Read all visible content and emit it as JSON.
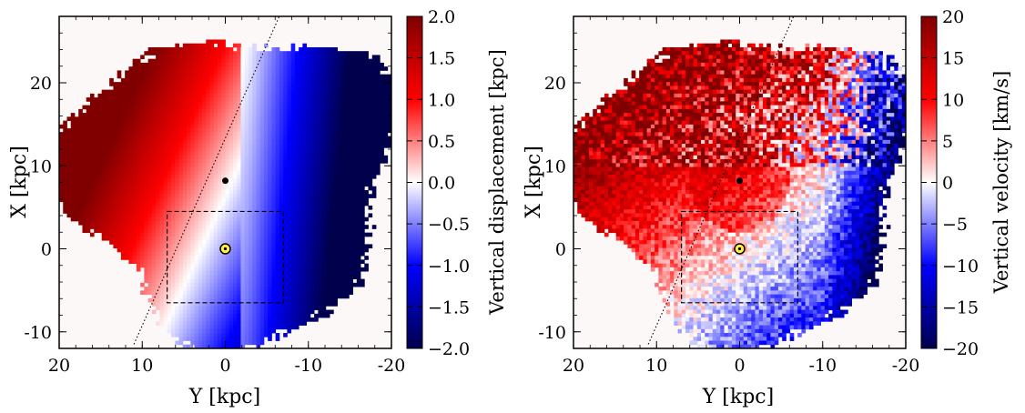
{
  "figure": {
    "panels": [
      {
        "id": "displacement",
        "colorbar_label": "Vertical displacement [kpc]",
        "colorbar_ticks": [
          "2.0",
          "1.5",
          "1.0",
          "0.5",
          "0.0",
          "−0.5",
          "−1.0",
          "−1.5",
          "−2.0"
        ],
        "colorbar_range": [
          -2.0,
          2.0
        ]
      },
      {
        "id": "velocity",
        "colorbar_label": "Vertical velocity [km/s]",
        "colorbar_ticks": [
          "20",
          "15",
          "10",
          "5",
          "0",
          "−5",
          "−10",
          "−15",
          "−20"
        ],
        "colorbar_range": [
          -20,
          20
        ]
      }
    ]
  },
  "chart_data": [
    {
      "type": "heatmap",
      "title": "",
      "xlabel": "Y [kpc]",
      "ylabel": "X [kpc]",
      "xlim": [
        20,
        -20
      ],
      "ylim": [
        -12,
        28
      ],
      "xticks": [
        "20",
        "10",
        "0",
        "-10",
        "-20"
      ],
      "yticks": [
        "20",
        "10",
        "0",
        "-10"
      ],
      "colorbar_label": "Vertical displacement [kpc]",
      "colorbar_range": [
        -2.0,
        2.0
      ],
      "colormap": "seismic",
      "pattern_description": "positive (red) displacement for Y>0 side and high X, negative (blue) for Y<0 side",
      "sun_position": {
        "Y": 0,
        "X": 0
      },
      "galactic_center": {
        "Y": 0,
        "X": 8.2
      },
      "dashed_box": {
        "Y": [
          7,
          -7
        ],
        "X": [
          -6.5,
          4.5
        ]
      },
      "dotted_line": {
        "Y": [
          11,
          -6.5
        ],
        "X": [
          -11.5,
          28
        ]
      }
    },
    {
      "type": "heatmap",
      "title": "",
      "xlabel": "Y [kpc]",
      "ylabel": "X [kpc]",
      "xlim": [
        20,
        -20
      ],
      "ylim": [
        -12,
        28
      ],
      "xticks": [
        "20",
        "10",
        "0",
        "-10",
        "-20"
      ],
      "yticks": [
        "20",
        "10",
        "0",
        "-10"
      ],
      "colorbar_label": "Vertical velocity [km/s]",
      "colorbar_range": [
        -20,
        20
      ],
      "colormap": "seismic",
      "pattern_description": "positive (red) velocity over most of inner disk, negative (blue) on outer Y<0 edge",
      "sun_position": {
        "Y": 0,
        "X": 0
      },
      "galactic_center": {
        "Y": 0,
        "X": 8.2
      },
      "dashed_box": {
        "Y": [
          7,
          -7
        ],
        "X": [
          -6.5,
          4.5
        ]
      },
      "dotted_line": {
        "Y": [
          11,
          -6.5
        ],
        "X": [
          -11.5,
          28
        ]
      }
    }
  ]
}
